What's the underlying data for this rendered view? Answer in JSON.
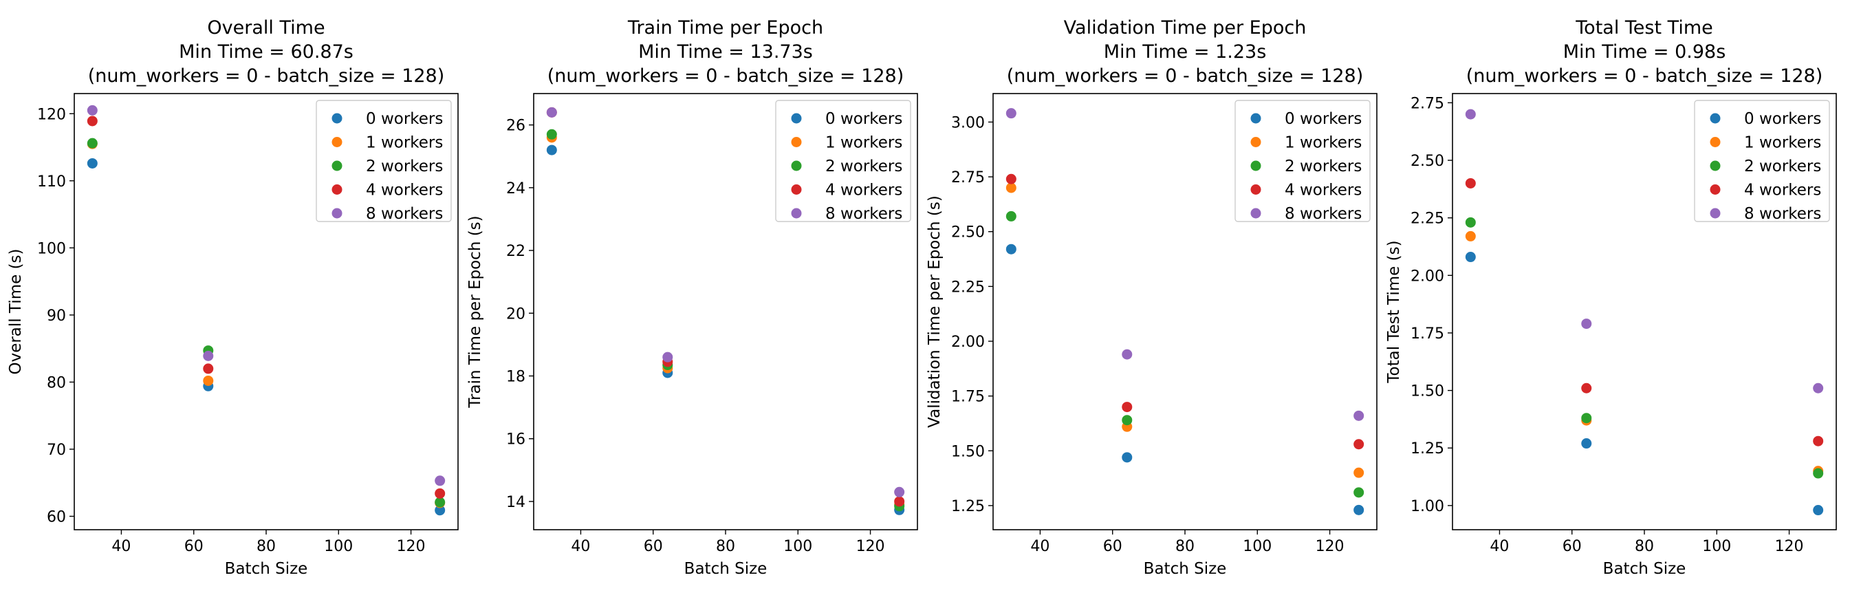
{
  "colors": {
    "0 workers": "#1f77b4",
    "1 workers": "#ff7f0e",
    "2 workers": "#2ca02c",
    "4 workers": "#d62728",
    "8 workers": "#9467bd"
  },
  "chart_data": [
    {
      "type": "scatter",
      "title": [
        "Overall Time",
        "Min Time = 60.87s",
        "(num_workers = 0 - batch_size = 128)"
      ],
      "xlabel": "Batch Size",
      "ylabel": "Overall Time (s)",
      "xlim": [
        27,
        133
      ],
      "ylim": [
        58,
        123
      ],
      "xticks": [
        40,
        60,
        80,
        100,
        120
      ],
      "yticks": [
        60,
        70,
        80,
        90,
        100,
        110,
        120
      ],
      "legend_position": "upper right",
      "grid": false,
      "series": [
        {
          "name": "0 workers",
          "x": [
            32,
            64,
            128
          ],
          "y": [
            112.6,
            79.4,
            60.9
          ]
        },
        {
          "name": "1 workers",
          "x": [
            32,
            64,
            128
          ],
          "y": [
            115.5,
            80.2,
            62.0
          ]
        },
        {
          "name": "2 workers",
          "x": [
            32,
            64,
            128
          ],
          "y": [
            115.6,
            84.7,
            62.1
          ]
        },
        {
          "name": "4 workers",
          "x": [
            32,
            64,
            128
          ],
          "y": [
            118.9,
            82.0,
            63.4
          ]
        },
        {
          "name": "8 workers",
          "x": [
            32,
            64,
            128
          ],
          "y": [
            120.5,
            83.9,
            65.3
          ]
        }
      ]
    },
    {
      "type": "scatter",
      "title": [
        "Train Time per Epoch",
        "Min Time = 13.73s",
        "(num_workers = 0 - batch_size = 128)"
      ],
      "xlabel": "Batch Size",
      "ylabel": "Train Time per Epoch (s)",
      "xlim": [
        27,
        133
      ],
      "ylim": [
        13.1,
        27.0
      ],
      "xticks": [
        40,
        60,
        80,
        100,
        120
      ],
      "yticks": [
        14,
        16,
        18,
        20,
        22,
        24,
        26
      ],
      "legend_position": "upper right",
      "grid": false,
      "series": [
        {
          "name": "0 workers",
          "x": [
            32,
            64,
            128
          ],
          "y": [
            25.2,
            18.1,
            13.73
          ]
        },
        {
          "name": "1 workers",
          "x": [
            32,
            64,
            128
          ],
          "y": [
            25.6,
            18.25,
            13.9
          ]
        },
        {
          "name": "2 workers",
          "x": [
            32,
            64,
            128
          ],
          "y": [
            25.7,
            18.35,
            13.85
          ]
        },
        {
          "name": "4 workers",
          "x": [
            32,
            64,
            128
          ],
          "y": [
            26.4,
            18.45,
            14.0
          ]
        },
        {
          "name": "8 workers",
          "x": [
            32,
            64,
            128
          ],
          "y": [
            26.4,
            18.6,
            14.3
          ]
        }
      ]
    },
    {
      "type": "scatter",
      "title": [
        "Validation Time per Epoch",
        "Min Time = 1.23s",
        "(num_workers = 0 - batch_size = 128)"
      ],
      "xlabel": "Batch Size",
      "ylabel": "Validation Time per Epoch (s)",
      "xlim": [
        27,
        133
      ],
      "ylim": [
        1.14,
        3.13
      ],
      "xticks": [
        40,
        60,
        80,
        100,
        120
      ],
      "yticks": [
        1.25,
        1.5,
        1.75,
        2.0,
        2.25,
        2.5,
        2.75,
        3.0
      ],
      "ytick_labels": [
        "1.25",
        "1.50",
        "1.75",
        "2.00",
        "2.25",
        "2.50",
        "2.75",
        "3.00"
      ],
      "legend_position": "upper right",
      "grid": false,
      "series": [
        {
          "name": "0 workers",
          "x": [
            32,
            64,
            128
          ],
          "y": [
            2.42,
            1.47,
            1.23
          ]
        },
        {
          "name": "1 workers",
          "x": [
            32,
            64,
            128
          ],
          "y": [
            2.7,
            1.61,
            1.4
          ]
        },
        {
          "name": "2 workers",
          "x": [
            32,
            64,
            128
          ],
          "y": [
            2.57,
            1.64,
            1.31
          ]
        },
        {
          "name": "4 workers",
          "x": [
            32,
            64,
            128
          ],
          "y": [
            2.74,
            1.7,
            1.53
          ]
        },
        {
          "name": "8 workers",
          "x": [
            32,
            64,
            128
          ],
          "y": [
            3.04,
            1.94,
            1.66
          ]
        }
      ]
    },
    {
      "type": "scatter",
      "title": [
        "Total Test Time",
        "Min Time = 0.98s",
        "(num_workers = 0 - batch_size = 128)"
      ],
      "xlabel": "Batch Size",
      "ylabel": "Total Test Time (s)",
      "xlim": [
        27,
        133
      ],
      "ylim": [
        0.895,
        2.79
      ],
      "xticks": [
        40,
        60,
        80,
        100,
        120
      ],
      "yticks": [
        1.0,
        1.25,
        1.5,
        1.75,
        2.0,
        2.25,
        2.5,
        2.75
      ],
      "ytick_labels": [
        "1.00",
        "1.25",
        "1.50",
        "1.75",
        "2.00",
        "2.25",
        "2.50",
        "2.75"
      ],
      "legend_position": "upper right",
      "grid": false,
      "series": [
        {
          "name": "0 workers",
          "x": [
            32,
            64,
            128
          ],
          "y": [
            2.08,
            1.27,
            0.98
          ]
        },
        {
          "name": "1 workers",
          "x": [
            32,
            64,
            128
          ],
          "y": [
            2.17,
            1.37,
            1.15
          ]
        },
        {
          "name": "2 workers",
          "x": [
            32,
            64,
            128
          ],
          "y": [
            2.23,
            1.38,
            1.14
          ]
        },
        {
          "name": "4 workers",
          "x": [
            32,
            64,
            128
          ],
          "y": [
            2.4,
            1.51,
            1.28
          ]
        },
        {
          "name": "8 workers",
          "x": [
            32,
            64,
            128
          ],
          "y": [
            2.7,
            1.79,
            1.51
          ]
        }
      ]
    }
  ]
}
